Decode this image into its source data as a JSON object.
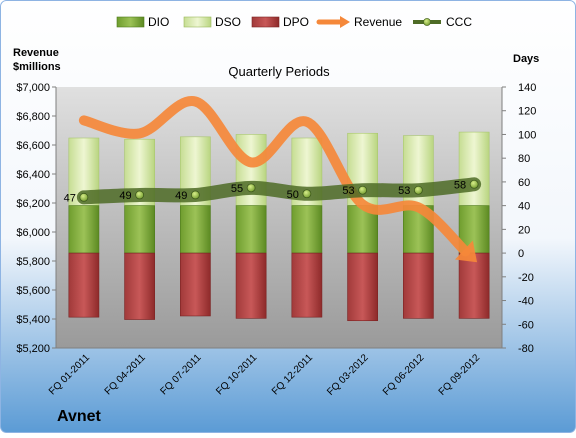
{
  "company": "Avnet",
  "chart_data": {
    "type": "bar",
    "title": "Quarterly Periods",
    "ylabel_left": "Revenue $millions",
    "ylabel_right": "Days",
    "categories": [
      "FQ 01-2011",
      "FQ 04-2011",
      "FQ 07-2011",
      "FQ 10-2011",
      "FQ 12-2011",
      "FQ 03-2012",
      "FQ 06-2012",
      "FQ 09-2012"
    ],
    "ylim_left": [
      5200,
      7000
    ],
    "ylim_right": [
      -80,
      140
    ],
    "left_ticks": [
      "$5,200",
      "$5,400",
      "$5,600",
      "$5,800",
      "$6,000",
      "$6,200",
      "$6,400",
      "$6,600",
      "$6,800",
      "$7,000"
    ],
    "right_ticks": [
      "-80",
      "-60",
      "-40",
      "-20",
      "0",
      "20",
      "40",
      "60",
      "80",
      "100",
      "120",
      "140"
    ],
    "legend": [
      "DIO",
      "DSO",
      "DPO",
      "Revenue",
      "CCC"
    ],
    "legend_position": "top",
    "series": [
      {
        "name": "DIO",
        "axis": "right",
        "type": "bar",
        "values": [
          40,
          40,
          40,
          40,
          40,
          40,
          40,
          40
        ]
      },
      {
        "name": "DSO",
        "axis": "right",
        "type": "bar",
        "values": [
          57,
          56,
          58,
          60,
          57,
          61,
          59,
          62
        ]
      },
      {
        "name": "DPO",
        "axis": "right",
        "type": "bar",
        "values": [
          -54,
          -56,
          -53,
          -55,
          -54,
          -57,
          -55,
          -55
        ]
      },
      {
        "name": "Revenue",
        "axis": "left",
        "type": "line",
        "values": [
          6770,
          6680,
          6900,
          6480,
          6760,
          6190,
          6170,
          5810
        ]
      },
      {
        "name": "CCC",
        "axis": "right",
        "type": "line",
        "values": [
          47,
          49,
          49,
          55,
          50,
          53,
          53,
          58
        ],
        "labels": [
          "47",
          "49",
          "49",
          "55",
          "50",
          "53",
          "53",
          "58"
        ]
      }
    ],
    "colors": {
      "dio_top": "#9cc257",
      "dio_bottom": "#5c8a22",
      "dso_top": "#e8f3c4",
      "dso_bottom": "#b9d580",
      "dpo_top": "#c85858",
      "dpo_bottom": "#8e2a2a",
      "revenue": "#f5883a",
      "ccc": "#4e6b26",
      "plot_bg": "#a6a6a6",
      "background": "#ffffff"
    }
  }
}
